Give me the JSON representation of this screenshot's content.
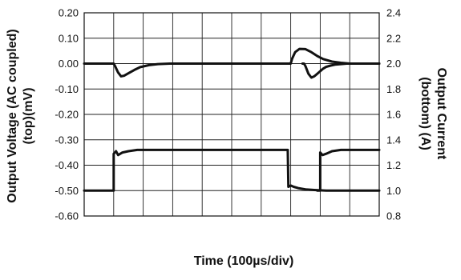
{
  "chart_data": {
    "type": "line",
    "title": "",
    "xlabel": "Time (100µs/div)",
    "ylabel_left": [
      "Output Voltage (AC coupled)",
      "(top)(mV)"
    ],
    "ylabel_right": [
      "Output Current",
      "(bottom) (A)"
    ],
    "x_divisions": 10,
    "xlim": [
      0,
      10
    ],
    "ylim_left": [
      -0.6,
      0.2
    ],
    "ylim_right": [
      0.8,
      2.4
    ],
    "yticks_left": [
      "0.20",
      "0.10",
      "0.00",
      "-0.10",
      "-0.20",
      "-0.30",
      "-0.40",
      "-0.50",
      "-0.60"
    ],
    "yticks_right": [
      "2.4",
      "2.2",
      "2.0",
      "1.8",
      "1.6",
      "1.4",
      "1.2",
      "1.0",
      "0.8"
    ],
    "grid": true,
    "legend": "none",
    "series": [
      {
        "axis": "left",
        "color": "#111111",
        "x": [
          0,
          1.0,
          1.05,
          1.15,
          1.25,
          1.35,
          1.5,
          1.7,
          1.9,
          2.2,
          2.5,
          2.9,
          3.3,
          4.0,
          5.0,
          6.0,
          6.9,
          7.0,
          7.05,
          7.15,
          7.3,
          7.5,
          7.7,
          7.9,
          8.1,
          8.4,
          8.7,
          9.0,
          9.5,
          10.0
        ],
        "values": [
          0.0,
          0.0,
          -0.01,
          -0.035,
          -0.05,
          -0.048,
          -0.038,
          -0.025,
          -0.014,
          -0.006,
          -0.002,
          0.0,
          0.0,
          0.0,
          0.0,
          0.0,
          0.0,
          0.0,
          0.02,
          0.045,
          0.058,
          0.057,
          0.045,
          0.03,
          0.018,
          0.008,
          0.003,
          0.0,
          0.0,
          0.0
        ]
      },
      {
        "axis": "right",
        "color": "#111111",
        "x": [
          0,
          1.0,
          1.0,
          1.08,
          1.15,
          1.3,
          1.5,
          1.8,
          2.2,
          2.8,
          3.5,
          4.5,
          5.5,
          6.0,
          6.9,
          6.92,
          7.0,
          7.1,
          7.25,
          7.5,
          7.8,
          8.2,
          8.6,
          9.0,
          9.5,
          10.0
        ],
        "values": [
          1.0,
          1.0,
          1.29,
          1.31,
          1.28,
          1.3,
          1.31,
          1.32,
          1.32,
          1.32,
          1.32,
          1.32,
          1.32,
          1.32,
          1.32,
          1.03,
          1.04,
          1.03,
          1.02,
          1.01,
          1.005,
          1.0,
          1.0,
          1.0,
          1.0,
          1.0
        ]
      },
      {
        "axis": "left",
        "color": "#111111",
        "x": [
          7.4,
          7.45,
          7.5,
          7.6,
          7.7,
          7.8,
          7.9,
          8.0,
          8.1,
          8.2,
          8.35,
          8.5,
          8.7,
          8.9,
          9.1,
          9.4,
          9.7,
          10.0
        ],
        "values": [
          0.0,
          0.0,
          -0.01,
          -0.04,
          -0.055,
          -0.05,
          -0.04,
          -0.03,
          -0.02,
          -0.013,
          -0.008,
          -0.004,
          -0.002,
          0.0,
          0.0,
          0.0,
          0.0,
          0.0
        ]
      },
      {
        "axis": "right",
        "color": "#111111",
        "x": [
          7.9,
          8.0,
          8.0,
          8.08,
          8.2,
          8.4,
          8.7,
          9.0,
          9.4,
          9.8,
          10.0
        ],
        "values": [
          1.0,
          1.0,
          1.3,
          1.28,
          1.29,
          1.31,
          1.32,
          1.32,
          1.32,
          1.32,
          1.32
        ]
      }
    ]
  }
}
